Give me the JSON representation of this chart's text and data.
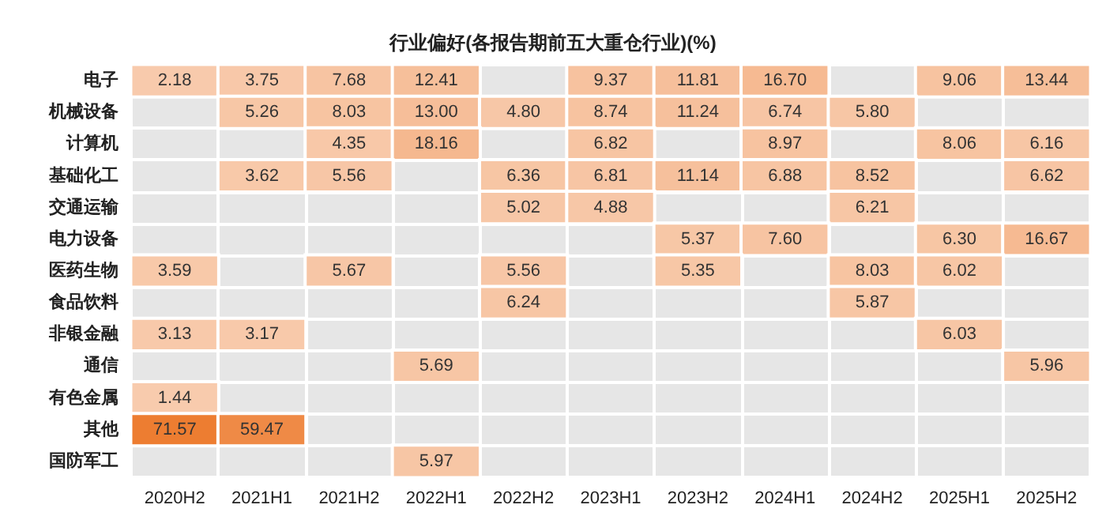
{
  "chart_data": {
    "type": "heatmap",
    "title": "行业偏好(各报告期前五大重仓行业)(%)",
    "categories": [
      "2020H2",
      "2021H1",
      "2021H2",
      "2022H1",
      "2022H2",
      "2023H1",
      "2023H2",
      "2024H1",
      "2024H2",
      "2025H1",
      "2025H2"
    ],
    "y_categories": [
      "电子",
      "机械设备",
      "计算机",
      "基础化工",
      "交通运输",
      "电力设备",
      "医药生物",
      "食品饮料",
      "非银金融",
      "通信",
      "有色金属",
      "其他",
      "国防军工"
    ],
    "colors": [
      "#f8cbad",
      "#ed7d31"
    ],
    "cell_labels": [
      [
        "2.18",
        "3.75",
        "7.68",
        "12.41",
        null,
        "9.37",
        "11.81",
        "16.70",
        null,
        "9.06",
        "13.44"
      ],
      [
        null,
        "5.26",
        "8.03",
        "13.00",
        "4.80",
        "8.74",
        "11.24",
        "6.74",
        "5.80",
        null,
        null
      ],
      [
        null,
        null,
        "4.35",
        "18.16",
        null,
        "6.82",
        null,
        "8.97",
        null,
        "8.06",
        "6.16"
      ],
      [
        null,
        "3.62",
        "5.56",
        null,
        "6.36",
        "6.81",
        "11.14",
        "6.88",
        "8.52",
        null,
        "6.62"
      ],
      [
        null,
        null,
        null,
        null,
        "5.02",
        "4.88",
        null,
        null,
        "6.21",
        null,
        null
      ],
      [
        null,
        null,
        null,
        null,
        null,
        null,
        "5.37",
        "7.60",
        null,
        "6.30",
        "16.67"
      ],
      [
        "3.59",
        null,
        "5.67",
        null,
        "5.56",
        null,
        "5.35",
        null,
        "8.03",
        "6.02",
        null
      ],
      [
        null,
        null,
        null,
        null,
        "6.24",
        null,
        null,
        null,
        "5.87",
        null,
        null
      ],
      [
        "3.13",
        "3.17",
        null,
        null,
        null,
        null,
        null,
        null,
        null,
        "6.03",
        null
      ],
      [
        null,
        null,
        null,
        "5.69",
        null,
        null,
        null,
        null,
        null,
        null,
        "5.96"
      ],
      [
        "1.44",
        null,
        null,
        null,
        null,
        null,
        null,
        null,
        null,
        null,
        null
      ],
      [
        "71.57",
        "59.47",
        null,
        null,
        null,
        null,
        null,
        null,
        null,
        null,
        null
      ],
      [
        null,
        null,
        null,
        "5.97",
        null,
        null,
        null,
        null,
        null,
        null,
        null
      ]
    ],
    "cells": [
      [
        2.18,
        3.75,
        7.68,
        12.41,
        null,
        9.37,
        11.81,
        16.7,
        null,
        9.06,
        13.44
      ],
      [
        null,
        5.26,
        8.03,
        13.0,
        4.8,
        8.74,
        11.24,
        6.74,
        5.8,
        null,
        null
      ],
      [
        null,
        null,
        4.35,
        18.16,
        null,
        6.82,
        null,
        8.97,
        null,
        8.06,
        6.16
      ],
      [
        null,
        3.62,
        5.56,
        null,
        6.36,
        6.81,
        11.14,
        6.88,
        8.52,
        null,
        6.62
      ],
      [
        null,
        null,
        null,
        null,
        5.02,
        4.88,
        null,
        null,
        6.21,
        null,
        null
      ],
      [
        null,
        null,
        null,
        null,
        null,
        null,
        5.37,
        7.6,
        null,
        6.3,
        16.67
      ],
      [
        3.59,
        null,
        5.67,
        null,
        5.56,
        null,
        5.35,
        null,
        8.03,
        6.02,
        null
      ],
      [
        null,
        null,
        null,
        null,
        6.24,
        null,
        null,
        null,
        5.87,
        null,
        null
      ],
      [
        3.13,
        3.17,
        null,
        null,
        null,
        null,
        null,
        null,
        null,
        6.03,
        null
      ],
      [
        null,
        null,
        null,
        5.69,
        null,
        null,
        null,
        null,
        null,
        null,
        5.96
      ],
      [
        1.44,
        null,
        null,
        null,
        null,
        null,
        null,
        null,
        null,
        null,
        null
      ],
      [
        71.57,
        59.47,
        null,
        null,
        null,
        null,
        null,
        null,
        null,
        null,
        null
      ],
      [
        null,
        null,
        null,
        5.97,
        null,
        null,
        null,
        null,
        null,
        null,
        null
      ]
    ]
  }
}
